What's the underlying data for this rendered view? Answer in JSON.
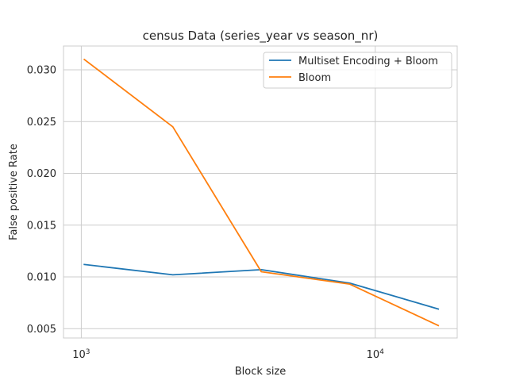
{
  "chart_data": {
    "type": "line",
    "title": "census Data (series_year vs season_nr)",
    "xlabel": "Block size",
    "ylabel": "False positive Rate",
    "x_scale": "log",
    "xlim": [
      870,
      19000
    ],
    "ylim": [
      0.0041,
      0.0323
    ],
    "x": [
      1024,
      2048,
      4096,
      8192,
      16384
    ],
    "x_ticks": [
      {
        "value": 1000,
        "base": "10",
        "exp": "3"
      },
      {
        "value": 10000,
        "base": "10",
        "exp": "4"
      }
    ],
    "y_ticks": [
      0.005,
      0.01,
      0.015,
      0.02,
      0.025,
      0.03
    ],
    "y_tick_labels": [
      "0.005",
      "0.010",
      "0.015",
      "0.020",
      "0.025",
      "0.030"
    ],
    "series": [
      {
        "name": "Multiset Encoding + Bloom",
        "color": "#1f77b4",
        "values": [
          0.0112,
          0.0102,
          0.0107,
          0.0094,
          0.0069
        ]
      },
      {
        "name": "Bloom",
        "color": "#ff7f0e",
        "values": [
          0.031,
          0.0245,
          0.0105,
          0.0093,
          0.0053
        ]
      }
    ],
    "grid": true,
    "legend_position": "upper right"
  }
}
